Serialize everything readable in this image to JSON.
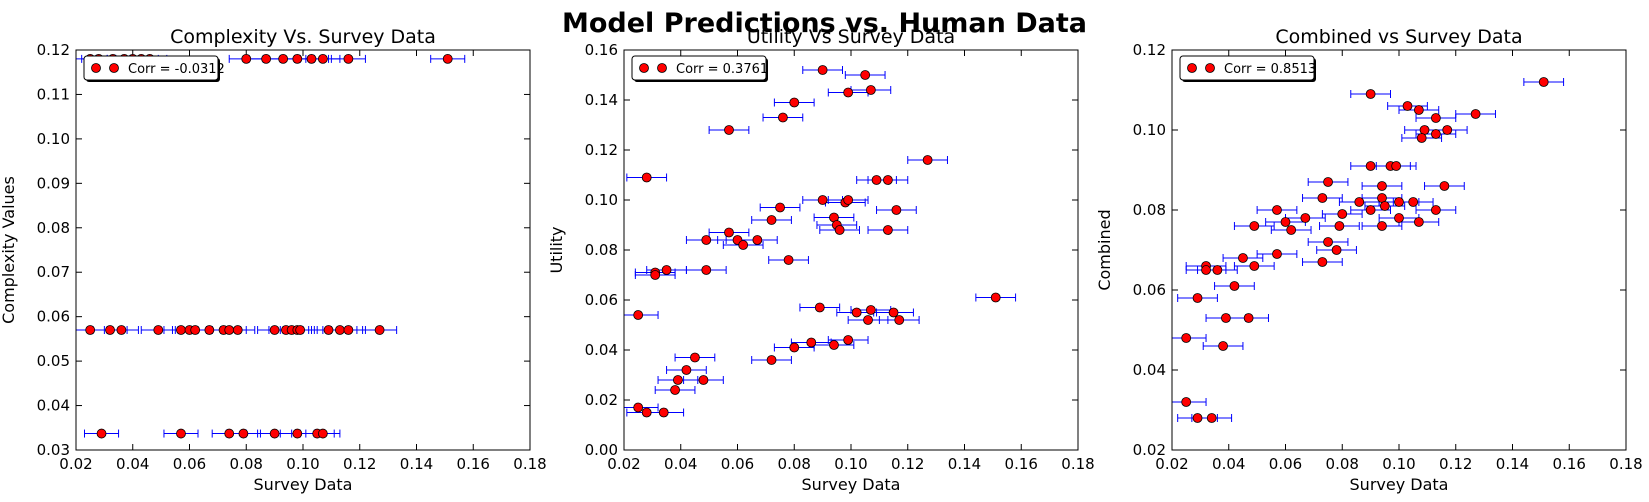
{
  "figure": {
    "title": "Model Predictions vs. Human Data"
  },
  "colors": {
    "marker_fill": "#ff0000",
    "errorbar": "#0000ff",
    "axes": "#000000"
  },
  "chart_data": [
    {
      "type": "scatter",
      "title": "Complexity Vs. Survey Data",
      "xlabel": "Survey Data",
      "ylabel": "Complexity Values",
      "xlim": [
        0.02,
        0.18
      ],
      "ylim": [
        0.03,
        0.12
      ],
      "xticks": [
        0.02,
        0.04,
        0.06,
        0.08,
        0.1,
        0.12,
        0.14,
        0.16,
        0.18
      ],
      "yticks": [
        0.03,
        0.04,
        0.05,
        0.06,
        0.07,
        0.08,
        0.09,
        0.1,
        0.11,
        0.12
      ],
      "xtick_labels": [
        "0.02",
        "0.04",
        "0.06",
        "0.08",
        "0.10",
        "0.12",
        "0.14",
        "0.16",
        "0.18"
      ],
      "ytick_labels": [
        "0.03",
        "0.04",
        "0.05",
        "0.06",
        "0.07",
        "0.08",
        "0.09",
        "0.10",
        "0.11",
        "0.12"
      ],
      "legend": "Corr = -0.0312",
      "legend_loc": "upper-left",
      "xerr": 0.006,
      "points": [
        [
          0.025,
          0.118
        ],
        [
          0.028,
          0.118
        ],
        [
          0.033,
          0.118
        ],
        [
          0.037,
          0.118
        ],
        [
          0.04,
          0.118
        ],
        [
          0.043,
          0.118
        ],
        [
          0.046,
          0.118
        ],
        [
          0.08,
          0.118
        ],
        [
          0.087,
          0.118
        ],
        [
          0.093,
          0.118
        ],
        [
          0.098,
          0.118
        ],
        [
          0.103,
          0.118
        ],
        [
          0.107,
          0.118
        ],
        [
          0.116,
          0.118
        ],
        [
          0.151,
          0.118
        ],
        [
          0.025,
          0.057
        ],
        [
          0.032,
          0.057
        ],
        [
          0.036,
          0.057
        ],
        [
          0.049,
          0.057
        ],
        [
          0.057,
          0.057
        ],
        [
          0.06,
          0.057
        ],
        [
          0.062,
          0.057
        ],
        [
          0.067,
          0.057
        ],
        [
          0.072,
          0.057
        ],
        [
          0.074,
          0.057
        ],
        [
          0.077,
          0.057
        ],
        [
          0.09,
          0.057
        ],
        [
          0.094,
          0.057
        ],
        [
          0.096,
          0.057
        ],
        [
          0.098,
          0.057
        ],
        [
          0.099,
          0.057
        ],
        [
          0.109,
          0.057
        ],
        [
          0.113,
          0.057
        ],
        [
          0.116,
          0.057
        ],
        [
          0.127,
          0.057
        ],
        [
          0.029,
          0.0337
        ],
        [
          0.057,
          0.0337
        ],
        [
          0.074,
          0.0337
        ],
        [
          0.079,
          0.0337
        ],
        [
          0.09,
          0.0337
        ],
        [
          0.098,
          0.0337
        ],
        [
          0.105,
          0.0337
        ],
        [
          0.107,
          0.0337
        ]
      ]
    },
    {
      "type": "scatter",
      "title": "Utility Vs Survey Data",
      "xlabel": "Survey Data",
      "ylabel": "Utility",
      "xlim": [
        0.02,
        0.18
      ],
      "ylim": [
        0.0,
        0.16
      ],
      "xticks": [
        0.02,
        0.04,
        0.06,
        0.08,
        0.1,
        0.12,
        0.14,
        0.16,
        0.18
      ],
      "yticks": [
        0.0,
        0.02,
        0.04,
        0.06,
        0.08,
        0.1,
        0.12,
        0.14,
        0.16
      ],
      "xtick_labels": [
        "0.02",
        "0.04",
        "0.06",
        "0.08",
        "0.10",
        "0.12",
        "0.14",
        "0.16",
        "0.18"
      ],
      "ytick_labels": [
        "0.00",
        "0.02",
        "0.04",
        "0.06",
        "0.08",
        "0.10",
        "0.12",
        "0.14",
        "0.16"
      ],
      "legend": "Corr = 0.3761",
      "legend_loc": "upper-left",
      "xerr": 0.007,
      "points": [
        [
          0.09,
          0.152
        ],
        [
          0.105,
          0.15
        ],
        [
          0.08,
          0.139
        ],
        [
          0.107,
          0.144
        ],
        [
          0.099,
          0.143
        ],
        [
          0.076,
          0.133
        ],
        [
          0.057,
          0.128
        ],
        [
          0.127,
          0.116
        ],
        [
          0.028,
          0.109
        ],
        [
          0.109,
          0.108
        ],
        [
          0.113,
          0.108
        ],
        [
          0.075,
          0.097
        ],
        [
          0.09,
          0.1
        ],
        [
          0.098,
          0.099
        ],
        [
          0.099,
          0.1
        ],
        [
          0.094,
          0.093
        ],
        [
          0.095,
          0.09
        ],
        [
          0.096,
          0.088
        ],
        [
          0.116,
          0.096
        ],
        [
          0.113,
          0.088
        ],
        [
          0.072,
          0.092
        ],
        [
          0.057,
          0.087
        ],
        [
          0.06,
          0.084
        ],
        [
          0.067,
          0.084
        ],
        [
          0.062,
          0.082
        ],
        [
          0.049,
          0.084
        ],
        [
          0.078,
          0.076
        ],
        [
          0.031,
          0.071
        ],
        [
          0.035,
          0.072
        ],
        [
          0.049,
          0.072
        ],
        [
          0.031,
          0.07
        ],
        [
          0.151,
          0.061
        ],
        [
          0.025,
          0.054
        ],
        [
          0.089,
          0.057
        ],
        [
          0.102,
          0.055
        ],
        [
          0.107,
          0.056
        ],
        [
          0.115,
          0.055
        ],
        [
          0.117,
          0.052
        ],
        [
          0.106,
          0.052
        ],
        [
          0.045,
          0.037
        ],
        [
          0.042,
          0.032
        ],
        [
          0.039,
          0.028
        ],
        [
          0.048,
          0.028
        ],
        [
          0.038,
          0.024
        ],
        [
          0.072,
          0.036
        ],
        [
          0.08,
          0.041
        ],
        [
          0.086,
          0.043
        ],
        [
          0.094,
          0.042
        ],
        [
          0.099,
          0.044
        ],
        [
          0.025,
          0.017
        ],
        [
          0.028,
          0.015
        ],
        [
          0.034,
          0.015
        ]
      ]
    },
    {
      "type": "scatter",
      "title": "Combined vs Survey Data",
      "xlabel": "Survey Data",
      "ylabel": "Combined",
      "xlim": [
        0.02,
        0.18
      ],
      "ylim": [
        0.02,
        0.12
      ],
      "xticks": [
        0.02,
        0.04,
        0.06,
        0.08,
        0.1,
        0.12,
        0.14,
        0.16,
        0.18
      ],
      "yticks": [
        0.02,
        0.04,
        0.06,
        0.08,
        0.1,
        0.12
      ],
      "xtick_labels": [
        "0.02",
        "0.04",
        "0.06",
        "0.08",
        "0.10",
        "0.12",
        "0.14",
        "0.16",
        "0.18"
      ],
      "ytick_labels": [
        "0.02",
        "0.04",
        "0.06",
        "0.08",
        "0.10",
        "0.12"
      ],
      "legend": "Corr = 0.8513",
      "legend_loc": "upper-left",
      "xerr": 0.007,
      "points": [
        [
          0.151,
          0.112
        ],
        [
          0.09,
          0.109
        ],
        [
          0.103,
          0.106
        ],
        [
          0.107,
          0.105
        ],
        [
          0.127,
          0.104
        ],
        [
          0.113,
          0.103
        ],
        [
          0.109,
          0.1
        ],
        [
          0.113,
          0.099
        ],
        [
          0.117,
          0.1
        ],
        [
          0.108,
          0.098
        ],
        [
          0.09,
          0.091
        ],
        [
          0.097,
          0.091
        ],
        [
          0.099,
          0.091
        ],
        [
          0.075,
          0.087
        ],
        [
          0.094,
          0.086
        ],
        [
          0.116,
          0.086
        ],
        [
          0.094,
          0.083
        ],
        [
          0.073,
          0.083
        ],
        [
          0.086,
          0.082
        ],
        [
          0.1,
          0.082
        ],
        [
          0.105,
          0.082
        ],
        [
          0.057,
          0.08
        ],
        [
          0.08,
          0.079
        ],
        [
          0.09,
          0.08
        ],
        [
          0.095,
          0.081
        ],
        [
          0.113,
          0.08
        ],
        [
          0.049,
          0.076
        ],
        [
          0.06,
          0.077
        ],
        [
          0.062,
          0.075
        ],
        [
          0.067,
          0.078
        ],
        [
          0.079,
          0.076
        ],
        [
          0.094,
          0.076
        ],
        [
          0.1,
          0.078
        ],
        [
          0.107,
          0.077
        ],
        [
          0.075,
          0.072
        ],
        [
          0.078,
          0.07
        ],
        [
          0.073,
          0.067
        ],
        [
          0.045,
          0.068
        ],
        [
          0.057,
          0.069
        ],
        [
          0.049,
          0.066
        ],
        [
          0.032,
          0.066
        ],
        [
          0.032,
          0.065
        ],
        [
          0.036,
          0.065
        ],
        [
          0.042,
          0.061
        ],
        [
          0.029,
          0.058
        ],
        [
          0.039,
          0.053
        ],
        [
          0.047,
          0.053
        ],
        [
          0.025,
          0.048
        ],
        [
          0.038,
          0.046
        ],
        [
          0.025,
          0.032
        ],
        [
          0.029,
          0.028
        ],
        [
          0.034,
          0.028
        ]
      ]
    }
  ]
}
